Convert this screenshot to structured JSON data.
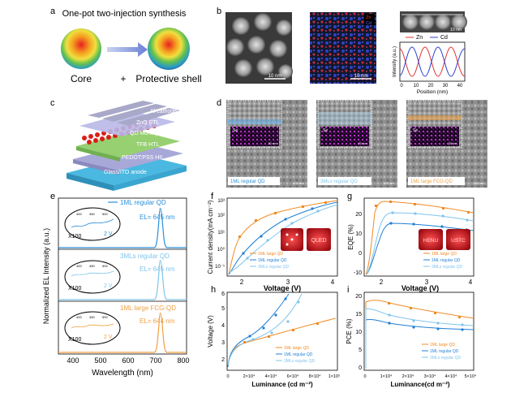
{
  "panel_labels": [
    "a",
    "b",
    "c",
    "d",
    "e",
    "f",
    "g",
    "h",
    "i"
  ],
  "panel_a": {
    "title": "One-pot two-injection synthesis",
    "core_label": "Core",
    "plus": "+",
    "shell_label": "Protective shell"
  },
  "panel_b": {
    "scale_1": "10 nm",
    "scale_2": "10 nm",
    "scale_3": "10 nm",
    "map_legend_zn": "Zn",
    "map_legend_cd": "Cd",
    "profile_legend_zn": "Zn",
    "profile_legend_cd": "Cd",
    "ylabel": "Intensity (a.u.)",
    "xlabel": "Position (nm)",
    "xticks": [
      "0",
      "10",
      "20",
      "30",
      "40"
    ],
    "colors": {
      "zn": "#e03030",
      "cd": "#2a3fd0"
    }
  },
  "panel_c": {
    "layers": [
      "Al cathode",
      "ZnO ETL",
      "QD Monlayer",
      "TFB HTL",
      "PEDOT:PSS HIL",
      "Glass/ITO anode"
    ]
  },
  "panel_d": {
    "captions": [
      "1ML regular QD",
      "3MLs regular QD",
      "1ML large FCG-QD"
    ],
    "scale_main": "100 nm",
    "scale_inset": "20 nm",
    "se_tag": "Se"
  },
  "panel_e": {
    "ylabel": "Normalized EL Intensity (a.u.)",
    "xlabel": "Wavelength (nm)",
    "xticks": [
      "400",
      "500",
      "600",
      "700",
      "800"
    ],
    "rows": [
      {
        "name": "1ML regular QD",
        "el": "EL= 645 nm",
        "color": "#2a8fd8",
        "x100": "X100",
        "v": "2 V",
        "inset_ticks": [
          "400",
          "450",
          "500"
        ]
      },
      {
        "name": "3MLs regular QD",
        "el": "EL= 645 nm",
        "color": "#7fc4ec",
        "x100": "X100",
        "v": "2 V",
        "inset_ticks": [
          "400",
          "450",
          "500"
        ]
      },
      {
        "name": "1ML large FCG-QD",
        "el": "EL= 644 nm",
        "color": "#f0a040",
        "x100": "X100",
        "v": "2 V",
        "inset_ticks": [
          "400",
          "450",
          "500"
        ]
      }
    ]
  },
  "panel_f": {
    "ylabel": "Current density(mA cm⁻²)",
    "xlabel": "Voltage (V)",
    "xticks": [
      "2",
      "3",
      "4"
    ],
    "yticks": [
      "10⁻¹",
      "10⁰",
      "10¹",
      "10²",
      "10³"
    ],
    "legend": [
      "1ML large QD",
      "1ML regular QD",
      "3MLs regular QD"
    ],
    "photo_text": "QLED"
  },
  "panel_g": {
    "ylabel": "EQE (%)",
    "xlabel": "Voltage (V)",
    "xticks": [
      "2",
      "3",
      "4"
    ],
    "yticks": [
      "-10",
      "0",
      "10",
      "20"
    ],
    "legend": [
      "1ML large QD",
      "1ML regular QD",
      "3MLs regular QD"
    ],
    "photo_texts": [
      "HENU",
      "USTC"
    ]
  },
  "panel_h": {
    "ylabel": "Voltage (V)",
    "xlabel": "Luminance  (cd m⁻²)",
    "xticks": [
      "0",
      "2×10⁴",
      "4×10⁴",
      "6×10⁴",
      "8×10⁴",
      "1×10⁵"
    ],
    "yticks": [
      "2",
      "3",
      "4",
      "5",
      "6"
    ],
    "legend": [
      "1ML large QD",
      "1ML regular QD",
      "3MLs regular QD"
    ]
  },
  "panel_i": {
    "ylabel": "PCE (%)",
    "xlabel": "Luminance(cd m⁻²)",
    "xticks": [
      "0",
      "1×10⁴",
      "2×10⁴",
      "3×10⁴",
      "4×10⁴",
      "5×10⁴"
    ],
    "yticks": [
      "0",
      "5",
      "10",
      "15",
      "20"
    ],
    "legend": [
      "1ML large QD",
      "1ML regular QD",
      "3MLs regular QD"
    ]
  },
  "series_colors": {
    "large": "#f08a24",
    "regular": "#1f7fd6",
    "three": "#7fc4ec"
  }
}
